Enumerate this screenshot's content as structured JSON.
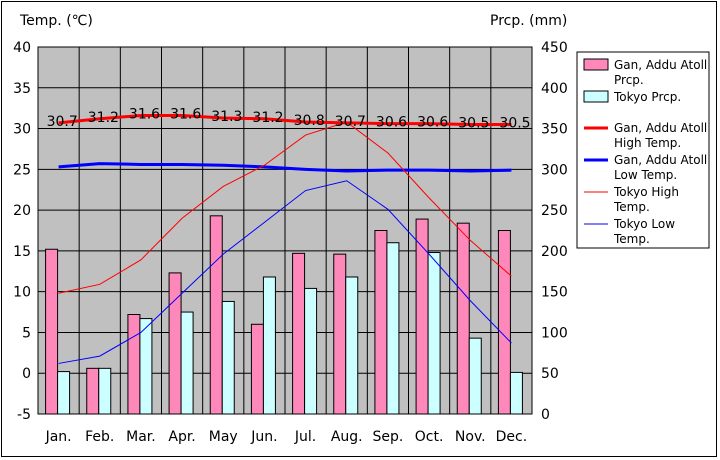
{
  "chart_data": {
    "type": "bar",
    "categories": [
      "Jan.",
      "Feb.",
      "Mar.",
      "Apr.",
      "May",
      "Jun.",
      "Jul.",
      "Aug.",
      "Sep.",
      "Oct.",
      "Nov.",
      "Dec."
    ],
    "ylabel_left": "Temp. (℃)",
    "ylabel_right": "Prcp. (mm)",
    "ylim_left": [
      -5,
      40
    ],
    "ylim_right": [
      0,
      450
    ],
    "yticks_left": [
      -5,
      0,
      5,
      10,
      15,
      20,
      25,
      30,
      35,
      40
    ],
    "yticks_right": [
      0,
      50,
      100,
      150,
      200,
      250,
      300,
      350,
      400,
      450
    ],
    "grid": true,
    "legend_position": "right",
    "bar_series": [
      {
        "name": "Gan, Addu Atoll Prcp.",
        "legend_lines": [
          "Gan, Addu Atoll",
          "Prcp."
        ],
        "color": "#ff88bb",
        "axis": "right",
        "values": [
          202,
          56,
          122,
          173,
          243,
          110,
          197,
          196,
          225,
          239,
          234,
          225
        ]
      },
      {
        "name": "Tokyo Prcp.",
        "legend_lines": [
          "Tokyo Prcp."
        ],
        "color": "#ccffff",
        "axis": "right",
        "values": [
          52,
          56,
          117,
          125,
          138,
          168,
          154,
          168,
          210,
          198,
          93,
          51
        ]
      }
    ],
    "line_series": [
      {
        "name": "Gan, Addu Atoll High Temp.",
        "legend_lines": [
          "Gan, Addu Atoll",
          "High Temp."
        ],
        "color": "#ff0000",
        "width": 3,
        "axis": "left",
        "values": [
          30.7,
          31.2,
          31.6,
          31.6,
          31.3,
          31.2,
          30.8,
          30.7,
          30.6,
          30.6,
          30.5,
          30.5
        ],
        "labels": [
          "30.7",
          "31.2",
          "31.6",
          "31.6",
          "31.3",
          "31.2",
          "30.8",
          "30.7",
          "30.6",
          "30.6",
          "30.5",
          "30.5"
        ]
      },
      {
        "name": "Gan, Addu Atoll Low Temp.",
        "legend_lines": [
          "Gan, Addu Atoll",
          "Low Temp."
        ],
        "color": "#0000ff",
        "width": 3,
        "axis": "left",
        "values": [
          25.3,
          25.7,
          25.6,
          25.6,
          25.5,
          25.3,
          25.0,
          24.8,
          24.9,
          24.9,
          24.8,
          24.9
        ]
      },
      {
        "name": "Tokyo High Temp.",
        "legend_lines": [
          "Tokyo High",
          "Temp."
        ],
        "color": "#ff0000",
        "width": 1,
        "axis": "left",
        "values": [
          9.8,
          10.9,
          13.9,
          19.0,
          22.9,
          25.5,
          29.2,
          30.8,
          27.0,
          21.5,
          16.3,
          11.9
        ]
      },
      {
        "name": "Tokyo Low Temp.",
        "legend_lines": [
          "Tokyo Low",
          "Temp."
        ],
        "color": "#0000ff",
        "width": 1,
        "axis": "left",
        "values": [
          1.2,
          2.1,
          5.0,
          9.8,
          14.6,
          18.5,
          22.4,
          23.6,
          20.1,
          14.6,
          8.9,
          3.7
        ]
      }
    ]
  }
}
